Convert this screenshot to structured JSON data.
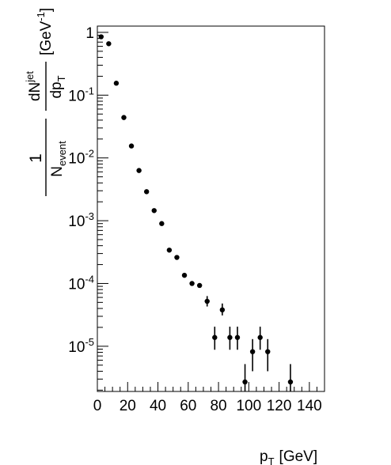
{
  "chart_data": {
    "type": "scatter",
    "title": "",
    "xlabel": "GeV",
    "ylabel": "GeV",
    "xlim": [
      0,
      150
    ],
    "ylim_log10": [
      -5.72,
      0.1
    ],
    "yscale": "log",
    "grid": false,
    "legend": "none",
    "x_ticks": [
      "0",
      "20",
      "40",
      "60",
      "80",
      "100",
      "120",
      "140"
    ],
    "y_ticks": [
      {
        "mant": "10",
        "exp": "-5",
        "log": -5
      },
      {
        "mant": "10",
        "exp": "-4",
        "log": -4
      },
      {
        "mant": "10",
        "exp": "-3",
        "log": -3
      },
      {
        "mant": "10",
        "exp": "-2",
        "log": -2
      },
      {
        "mant": "10",
        "exp": "-1",
        "log": -1
      },
      {
        "mant": "1",
        "exp": "",
        "log": 0
      }
    ],
    "points": [
      {
        "x": 2.5,
        "y": 0.85
      },
      {
        "x": 7.5,
        "y": 0.66
      },
      {
        "x": 12.5,
        "y": 0.155
      },
      {
        "x": 17.5,
        "y": 0.044
      },
      {
        "x": 22.5,
        "y": 0.0155
      },
      {
        "x": 27.5,
        "y": 0.0063
      },
      {
        "x": 32.5,
        "y": 0.0029
      },
      {
        "x": 37.5,
        "y": 0.00145
      },
      {
        "x": 42.5,
        "y": 0.0009
      },
      {
        "x": 47.5,
        "y": 0.00034
      },
      {
        "x": 52.5,
        "y": 0.00026
      },
      {
        "x": 57.5,
        "y": 0.000135
      },
      {
        "x": 62.5,
        "y": 0.0001
      },
      {
        "x": 67.5,
        "y": 9.3e-05
      },
      {
        "x": 72.5,
        "y": 5.2e-05,
        "err": [
          4.3e-05,
          6.3e-05
        ]
      },
      {
        "x": 77.5,
        "y": 1.38e-05,
        "err": [
          8.8e-06,
          2.05e-05
        ]
      },
      {
        "x": 82.5,
        "y": 3.8e-05,
        "err": [
          3.1e-05,
          4.8e-05
        ]
      },
      {
        "x": 87.5,
        "y": 1.38e-05,
        "err": [
          8.8e-06,
          2.05e-05
        ]
      },
      {
        "x": 92.5,
        "y": 1.38e-05,
        "err": [
          8.8e-06,
          2.05e-05
        ]
      },
      {
        "x": 97.5,
        "y": 2.7e-06,
        "err": [
          1.9e-06,
          5.2e-06
        ]
      },
      {
        "x": 102.5,
        "y": 8.2e-06,
        "err": [
          4e-06,
          1.3e-05
        ]
      },
      {
        "x": 107.5,
        "y": 1.38e-05,
        "err": [
          8.8e-06,
          2.05e-05
        ]
      },
      {
        "x": 112.5,
        "y": 8.2e-06,
        "err": [
          4e-06,
          1.3e-05
        ]
      },
      {
        "x": 127.5,
        "y": 2.7e-06,
        "err": [
          1.9e-06,
          5.2e-06
        ]
      }
    ]
  }
}
